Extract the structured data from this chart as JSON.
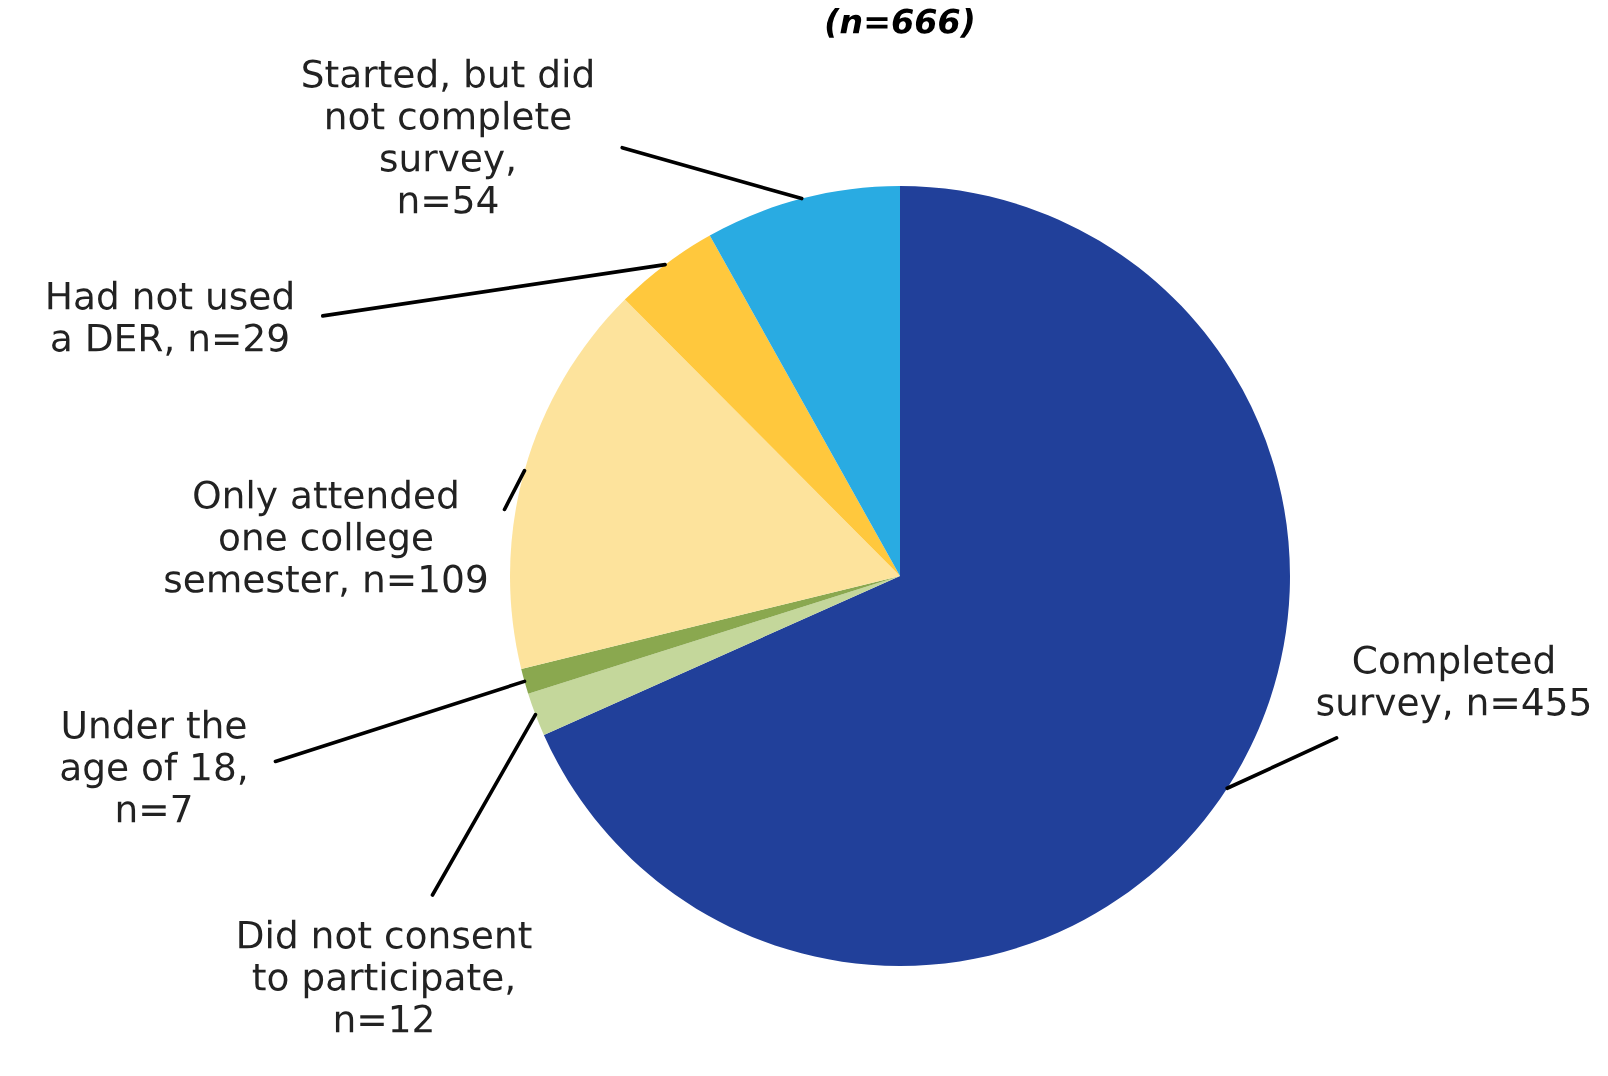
{
  "chart_data": {
    "type": "pie",
    "title": "(n=666)",
    "categories": [
      "Completed\nsurvey, n=455",
      "Did not consent\nto participate,\nn=12",
      "Under the\nage of 18,\nn=7",
      "Only attended\none college\nsemester, n=109",
      "Had not used\na DER, n=29",
      "Started, but did\nnot complete\nsurvey,\nn=54"
    ],
    "values": [
      455,
      12,
      7,
      109,
      29,
      54
    ],
    "colors": [
      "#21409a",
      "#c4d79b",
      "#8aa84f",
      "#fde39c",
      "#ffc83d",
      "#29abe2"
    ],
    "legend": false
  }
}
